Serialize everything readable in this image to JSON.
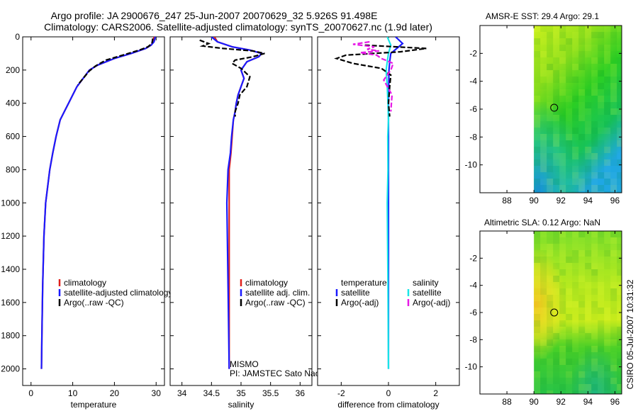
{
  "header": {
    "line1": "Argo profile: JA 2900676_247 25-Jun-2007 20070629_32 5.926S 91.498E",
    "line2": "Climatology: CARS2006. Satellite-adjusted climatology: synTS_20070627.nc (1.9d later)"
  },
  "side_label": "CSIRO 05-Jul-2007 10:31:32",
  "colors": {
    "red": "#e0201b",
    "blue": "#1a1aff",
    "black": "#000000",
    "cyan": "#19e6e6",
    "magenta": "#e619e6"
  },
  "chart_data": [
    {
      "id": "temperature",
      "type": "line",
      "xlabel": "temperature",
      "xlim": [
        -2,
        32
      ],
      "xticks": [
        0,
        10,
        20,
        30
      ],
      "ylim": [
        0,
        2100
      ],
      "yticks": [
        0,
        200,
        400,
        600,
        800,
        1000,
        1200,
        1400,
        1600,
        1800,
        2000
      ],
      "legend": [
        "climatology",
        "satellite-adjusted climatology",
        "Argo(..raw -QC)"
      ],
      "legend_colors": [
        "red",
        "blue",
        "black"
      ],
      "series": [
        {
          "name": "climatology",
          "color": "red",
          "dash": false,
          "x": [
            29.5,
            29.3,
            28.8,
            27.5,
            24,
            20,
            16,
            14,
            12.5,
            11,
            10,
            9,
            8,
            7,
            6.5,
            6,
            5.2,
            4.5,
            4,
            3.5,
            3.1,
            2.8,
            2.6,
            2.5
          ],
          "y": [
            0,
            30,
            50,
            70,
            100,
            130,
            170,
            200,
            250,
            300,
            350,
            400,
            450,
            500,
            550,
            600,
            700,
            800,
            900,
            1000,
            1200,
            1500,
            1800,
            2000
          ]
        },
        {
          "name": "satellite-adjusted climatology",
          "color": "blue",
          "dash": false,
          "x": [
            29.8,
            29.5,
            28.8,
            27.5,
            24,
            20,
            16,
            14,
            12.5,
            11,
            10,
            9,
            8,
            7,
            6.5,
            6,
            5.2,
            4.5,
            4,
            3.5,
            3.1,
            2.8,
            2.6,
            2.5
          ],
          "y": [
            0,
            30,
            50,
            70,
            100,
            130,
            170,
            200,
            250,
            300,
            350,
            400,
            450,
            500,
            550,
            600,
            700,
            800,
            900,
            1000,
            1200,
            1500,
            1800,
            2000
          ]
        },
        {
          "name": "Argo(..raw -QC)",
          "color": "black",
          "dash": true,
          "x": [
            29.2,
            29,
            28,
            26,
            22,
            18,
            15.5,
            14,
            12.5,
            11.2
          ],
          "y": [
            10,
            40,
            60,
            80,
            110,
            140,
            175,
            205,
            250,
            290
          ]
        }
      ]
    },
    {
      "id": "salinity",
      "type": "line",
      "xlabel": "salinity",
      "xlim": [
        33.8,
        36.2
      ],
      "xticks": [
        34,
        34.5,
        35,
        35.5,
        36
      ],
      "ylim": [
        0,
        2100
      ],
      "legend": [
        "climatology",
        "satellite adj. clim.",
        "Argo(..raw -QC)"
      ],
      "legend_colors": [
        "red",
        "blue",
        "black"
      ],
      "annotation": [
        "MISMO",
        "PI: JAMSTEC Sato Naoki"
      ],
      "series": [
        {
          "name": "climatology",
          "color": "red",
          "dash": false,
          "x": [
            34.55,
            34.6,
            34.85,
            35.15,
            35.35,
            35.3,
            35.1,
            35,
            35.05,
            35,
            34.95,
            34.92,
            34.9,
            34.87,
            34.85,
            34.83,
            34.8,
            34.8,
            34.8,
            34.8
          ],
          "y": [
            0,
            30,
            60,
            80,
            100,
            120,
            150,
            200,
            250,
            300,
            350,
            400,
            450,
            500,
            600,
            700,
            800,
            1000,
            1500,
            2000
          ]
        },
        {
          "name": "satellite adj. clim.",
          "color": "blue",
          "dash": false,
          "x": [
            34.5,
            34.6,
            34.85,
            35.15,
            35.35,
            35.3,
            35.1,
            35,
            35.05,
            35,
            34.95,
            34.92,
            34.9,
            34.87,
            34.84,
            34.82,
            34.78,
            34.76,
            34.78,
            34.8
          ],
          "y": [
            0,
            30,
            60,
            80,
            100,
            120,
            150,
            200,
            250,
            300,
            350,
            400,
            450,
            500,
            600,
            700,
            800,
            1000,
            1500,
            2000
          ]
        },
        {
          "name": "Argo(..raw -QC)",
          "color": "black",
          "dash": true,
          "x": [
            34.3,
            34.45,
            34.35,
            34.7,
            35.2,
            35.4,
            35.2,
            34.9,
            34.85,
            35,
            35.15,
            35.1,
            34.98,
            34.95,
            34.9,
            34.9
          ],
          "y": [
            20,
            40,
            55,
            70,
            85,
            100,
            120,
            140,
            160,
            190,
            240,
            300,
            350,
            400,
            450,
            480
          ]
        }
      ]
    },
    {
      "id": "difference",
      "type": "line",
      "xlabel": "difference from climatology",
      "xlim": [
        -3,
        3
      ],
      "xticks": [
        -2,
        0,
        2
      ],
      "ylim": [
        0,
        2100
      ],
      "legend_left": [
        "temperature",
        "satellite",
        "Argo(-adj)"
      ],
      "legend_right": [
        "salinity",
        "satellite",
        "Argo(-adj)"
      ],
      "legend_left_colors": [
        "none",
        "blue",
        "black"
      ],
      "legend_right_colors": [
        "none",
        "cyan",
        "magenta"
      ],
      "series": [
        {
          "name": "temperature satellite",
          "color": "blue",
          "dash": false,
          "x": [
            0.3,
            0.6,
            0.35,
            0.1,
            0.05,
            0.02,
            0,
            0,
            0,
            0,
            0
          ],
          "y": [
            0,
            40,
            70,
            100,
            150,
            200,
            400,
            800,
            1200,
            1600,
            2000
          ]
        },
        {
          "name": "salinity satellite",
          "color": "cyan",
          "dash": false,
          "x": [
            -0.05,
            0.1,
            0,
            -0.05,
            -0.1,
            -0.05,
            -0.02,
            0,
            -0.03,
            -0.02,
            -0.05,
            -0.02,
            0
          ],
          "y": [
            0,
            50,
            100,
            150,
            200,
            300,
            400,
            500,
            600,
            800,
            1000,
            1500,
            2000
          ]
        },
        {
          "name": "temperature Argo(-adj)",
          "color": "black",
          "dash": true,
          "x": [
            -1,
            1.6,
            0.5,
            -1.8,
            -2.2,
            -1.5,
            -0.3,
            0.1,
            0.05,
            0,
            0.05
          ],
          "y": [
            50,
            70,
            90,
            110,
            130,
            160,
            190,
            230,
            300,
            400,
            480
          ]
        },
        {
          "name": "salinity Argo(-adj)",
          "color": "magenta",
          "dash": true,
          "x": [
            -0.8,
            -1.5,
            -0.6,
            -0.9,
            -0.4,
            -1.2,
            -0.5,
            -0.3,
            0.2,
            0.1,
            -0.2,
            0.15,
            0.1
          ],
          "y": [
            30,
            45,
            60,
            75,
            85,
            95,
            110,
            130,
            160,
            200,
            260,
            350,
            450
          ]
        }
      ]
    },
    {
      "id": "sst_map",
      "type": "heatmap",
      "title": "AMSR-E SST: 29.4  Argo: 29.1",
      "xlim": [
        86,
        96.5
      ],
      "xticks": [
        88,
        90,
        92,
        94,
        96
      ],
      "ylim": [
        -12,
        0
      ],
      "yticks": [
        -2,
        -4,
        -6,
        -8,
        -10
      ],
      "data_xlim": [
        90,
        96.5
      ],
      "marker": [
        91.5,
        -5.9
      ]
    },
    {
      "id": "sla_map",
      "type": "heatmap",
      "title": "Altimetric SLA: 0.12  Argo: NaN",
      "xlim": [
        86,
        96.5
      ],
      "xticks": [
        88,
        90,
        92,
        94,
        96
      ],
      "ylim": [
        -12,
        0
      ],
      "yticks": [
        -2,
        -4,
        -6,
        -8,
        -10
      ],
      "data_xlim": [
        90,
        96.5
      ],
      "marker": [
        91.5,
        -6
      ]
    }
  ]
}
